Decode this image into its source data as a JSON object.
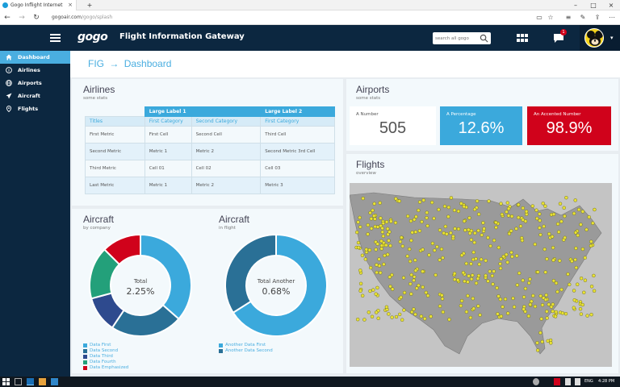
{
  "browser": {
    "tab_title": "Gogo Inflight Internet",
    "url_host": "gogoair.com",
    "url_path": "/gogo/splash"
  },
  "header": {
    "logo": "gogo",
    "title": "Flight Information Gateway",
    "search_placeholder": "search all gogo",
    "notifications_count": "1"
  },
  "sidebar": {
    "items": [
      {
        "label": "Dashboard",
        "icon": "home-icon"
      },
      {
        "label": "Airlines",
        "icon": "info-icon"
      },
      {
        "label": "Airports",
        "icon": "globe-icon"
      },
      {
        "label": "Aircraft",
        "icon": "plane-icon"
      },
      {
        "label": "Flights",
        "icon": "map-pin-icon"
      }
    ]
  },
  "breadcrumb": {
    "root": "FIG",
    "separator": "→",
    "current": "Dashboard"
  },
  "airlines": {
    "title": "Airlines",
    "subtitle": "some stats",
    "group_headers": [
      "Large Label 1",
      "Large Label 2"
    ],
    "columns": [
      "Titles",
      "First Category",
      "Second Category",
      "First Category"
    ],
    "rows": [
      [
        "First Metric",
        "First Cell",
        "Second Cell",
        "Third Cell"
      ],
      [
        "Second Metric",
        "Metric 1",
        "Metric 2",
        "Second Metric 3rd Cell"
      ],
      [
        "Third Metric",
        "Cell 01",
        "Cell 02",
        "Cell 03"
      ],
      [
        "Last Metric",
        "Metric 1",
        "Metric 2",
        "Metric 3"
      ]
    ]
  },
  "airports": {
    "title": "Airports",
    "subtitle": "some stats",
    "stats": [
      {
        "label": "A Number",
        "value": "505"
      },
      {
        "label": "A Percentage",
        "value": "12.6%"
      },
      {
        "label": "An Accented Number",
        "value": "98.9%"
      }
    ]
  },
  "aircraft_company": {
    "title": "Aircraft",
    "subtitle": "by company",
    "center_label": "Total",
    "center_value": "2.25%",
    "legend": [
      "Data First",
      "Data Second",
      "Data Third",
      "Data Fourth",
      "Data Emphasized"
    ],
    "colors": [
      "#3ba9dc",
      "#2a7096",
      "#2e4a8e",
      "#23a07a",
      "#d0021b"
    ]
  },
  "aircraft_flight": {
    "title": "Aircraft",
    "subtitle": "in flight",
    "center_label": "Total Another",
    "center_value": "0.68%",
    "legend": [
      "Another Data First",
      "Another Data Second"
    ],
    "colors": [
      "#3ba9dc",
      "#2a7096"
    ]
  },
  "flights": {
    "title": "Flights",
    "subtitle": "overview"
  },
  "taskbar": {
    "lang": "ENG",
    "time": "4:28 PM"
  },
  "chart_data": [
    {
      "type": "pie",
      "title": "Aircraft",
      "labels": [
        "Data First",
        "Data Second",
        "Data Third",
        "Data Fourth",
        "Data Emphasized"
      ],
      "values": [
        35,
        22,
        11,
        16,
        12
      ]
    },
    {
      "type": "pie",
      "title": "Aircraft",
      "labels": [
        "Another Data First",
        "Another Data Second"
      ],
      "values": [
        66,
        34
      ]
    }
  ]
}
